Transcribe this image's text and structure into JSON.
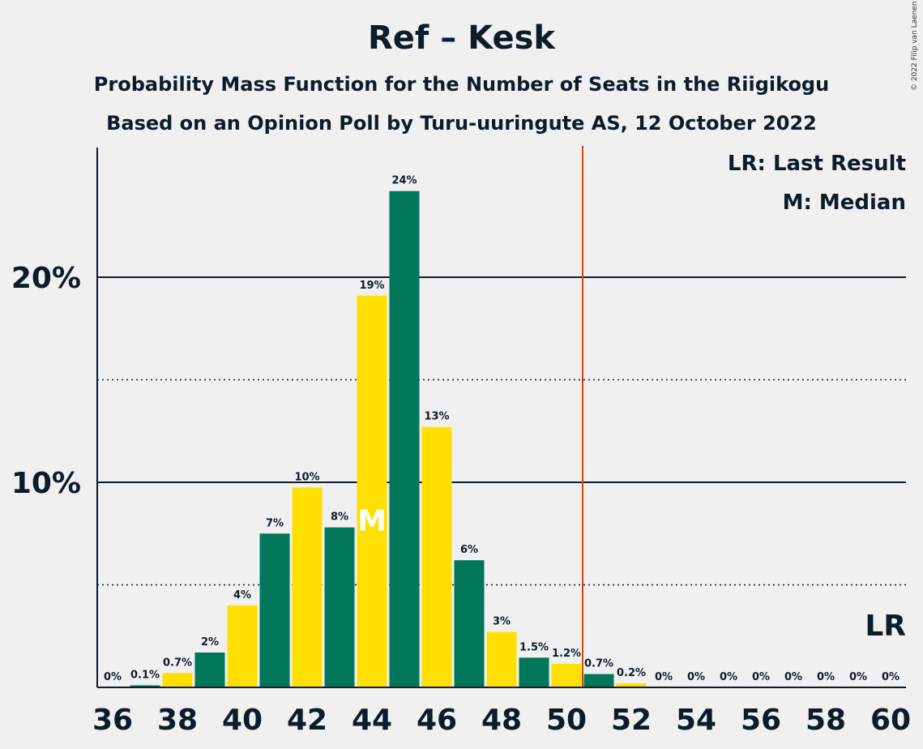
{
  "chart_data": {
    "type": "bar",
    "title": "Ref – Kesk",
    "subtitle": "Probability Mass Function for the Number of Seats in the Riigikogu",
    "subtitle2": "Based on an Opinion Poll by Turu-uuringute AS, 12 October 2022",
    "copyright": "© 2022 Filip van Laenen",
    "x": [
      36,
      37,
      38,
      39,
      40,
      41,
      42,
      43,
      44,
      45,
      46,
      47,
      48,
      49,
      50,
      51,
      52,
      53,
      54,
      55,
      56,
      57,
      58,
      59,
      60
    ],
    "values": [
      0.0,
      0.1,
      0.7,
      1.7,
      4.0,
      7.5,
      9.75,
      7.8,
      19.1,
      24.2,
      12.7,
      6.2,
      2.7,
      1.45,
      1.15,
      0.65,
      0.2,
      0,
      0,
      0,
      0,
      0,
      0,
      0,
      0
    ],
    "labels": [
      "0%",
      "0.1%",
      "0.7%",
      "2%",
      "4%",
      "7%",
      "10%",
      "8%",
      "19%",
      "24%",
      "13%",
      "6%",
      "3%",
      "1.5%",
      "1.2%",
      "0.7%",
      "0.2%",
      "0%",
      "0%",
      "0%",
      "0%",
      "0%",
      "0%",
      "0%",
      "0%"
    ],
    "x_tick_labels": [
      "36",
      "38",
      "40",
      "42",
      "44",
      "46",
      "48",
      "50",
      "52",
      "54",
      "56",
      "58",
      "60"
    ],
    "y_tick_labels": [
      "10%",
      "20%"
    ],
    "ylim": [
      0,
      26.5
    ],
    "solid_gridlines": [
      10,
      20
    ],
    "dotted_gridlines": [
      5,
      15
    ],
    "median": 44,
    "median_label": "M",
    "last_result": 50.5,
    "last_result_label": "LR",
    "legend": [
      "LR: Last Result",
      "M: Median"
    ],
    "legend_position": "top-right",
    "colors": {
      "green": "#00765a",
      "yellow": "#ffe000",
      "last_result_line": "#c84b0a",
      "text": "#0d1b2a"
    }
  }
}
